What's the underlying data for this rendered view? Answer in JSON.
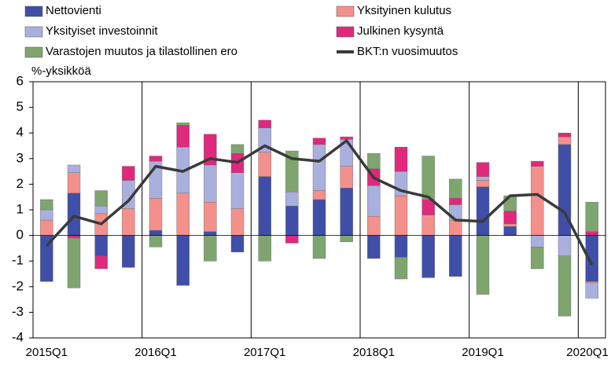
{
  "chart_data": {
    "type": "bar",
    "y_label": "%-yksikköä",
    "categories": [
      "2015Q1",
      null,
      null,
      null,
      "2016Q1",
      null,
      null,
      null,
      "2017Q1",
      null,
      null,
      null,
      "2018Q1",
      null,
      null,
      null,
      "2019Q1",
      null,
      null,
      null,
      "2020Q1"
    ],
    "stacked": true,
    "series": [
      {
        "name": "Nettovienti",
        "color": "#3f4fa8",
        "values": [
          -1.8,
          1.65,
          -0.8,
          -1.25,
          0.2,
          -1.95,
          0.15,
          -0.65,
          2.3,
          1.15,
          1.4,
          1.85,
          -0.9,
          -0.85,
          -1.65,
          -1.6,
          1.9,
          0.35,
          0,
          3.55,
          -1.8
        ]
      },
      {
        "name": "Yksityinen kulutus",
        "color": "#f4908c",
        "values": [
          0.6,
          0.8,
          0.85,
          1.05,
          1.25,
          1.65,
          1.15,
          1.05,
          0.95,
          0,
          0.35,
          0.85,
          0.75,
          1.55,
          0.8,
          0.6,
          0.25,
          0.1,
          2.7,
          0.3,
          -0.05
        ]
      },
      {
        "name": "Yksityiset investoinnit",
        "color": "#a9b0de",
        "values": [
          0.4,
          0.3,
          0.3,
          1.1,
          1.45,
          1.8,
          1.45,
          1.4,
          0.95,
          0.55,
          1.8,
          1.05,
          1.2,
          0.95,
          0,
          0.6,
          0.15,
          0,
          -0.45,
          -0.8,
          -0.6
        ]
      },
      {
        "name": "Julkinen kysyntä",
        "color": "#e0287c",
        "values": [
          0,
          -0.1,
          -0.5,
          0.55,
          0.2,
          0.85,
          1.2,
          0.75,
          0.3,
          -0.3,
          0.25,
          0.1,
          0.65,
          0.95,
          0.6,
          0.25,
          0.55,
          0.5,
          0.2,
          0.15,
          0.15
        ]
      },
      {
        "name": "Varastojen muutos ja tilastollinen ero",
        "color": "#7fa56f",
        "values": [
          0.4,
          -1.95,
          0.6,
          0,
          -0.45,
          0.1,
          -1.0,
          0.35,
          -1.0,
          1.6,
          -0.9,
          -0.25,
          0.6,
          -0.85,
          1.7,
          0.75,
          -2.3,
          0.6,
          -0.85,
          -2.35,
          1.15
        ]
      }
    ],
    "line": {
      "name": "BKT:n vuosimuutos",
      "color": "#3a3a3a",
      "values": [
        -0.4,
        0.75,
        0.45,
        1.35,
        2.7,
        2.5,
        3.0,
        2.85,
        3.5,
        3.0,
        2.9,
        3.7,
        2.25,
        1.75,
        1.5,
        0.6,
        0.55,
        1.55,
        1.6,
        0.9,
        -1.15
      ]
    },
    "ylim": [
      -4,
      6
    ],
    "yticks": [
      -4,
      -3,
      -2,
      -1,
      0,
      1,
      2,
      3,
      4,
      5,
      6
    ]
  }
}
